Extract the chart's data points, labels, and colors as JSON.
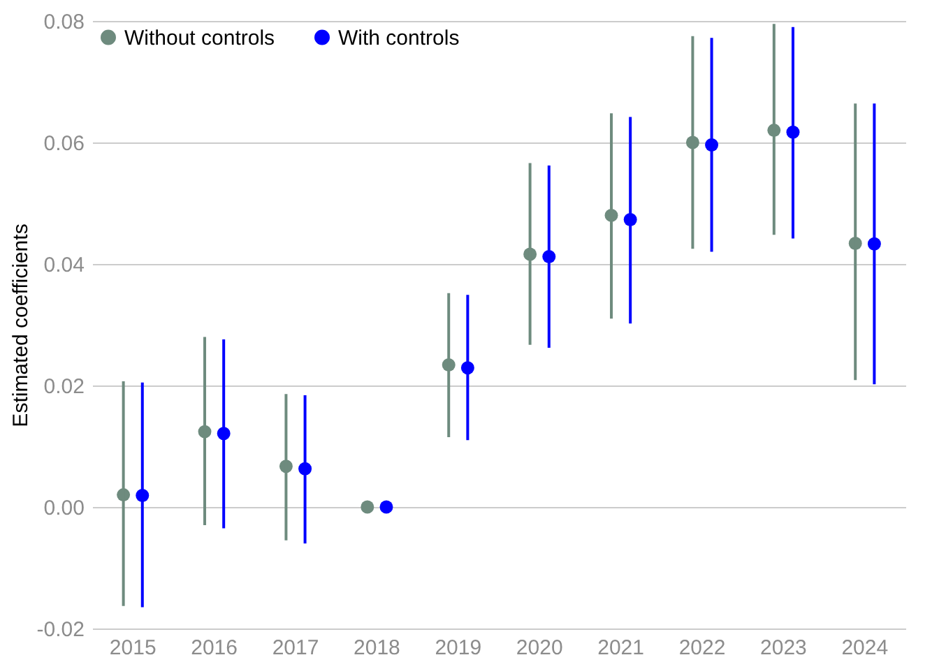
{
  "chart_data": {
    "type": "scatter",
    "ylabel": "Estimated coefficients",
    "categories": [
      "2015",
      "2016",
      "2017",
      "2018",
      "2019",
      "2020",
      "2021",
      "2022",
      "2023",
      "2024"
    ],
    "series": [
      {
        "name": "Without controls",
        "color": "#6e8b7e",
        "values": [
          0.002,
          0.0124,
          0.0067,
          0,
          0.0234,
          0.0416,
          0.048,
          0.06,
          0.062,
          0.0434
        ],
        "errors": [
          [
            -0.0163,
            0.0207
          ],
          [
            -0.003,
            0.028
          ],
          [
            -0.0055,
            0.0186
          ],
          null,
          [
            0.0115,
            0.0352
          ],
          [
            0.0267,
            0.0566
          ],
          [
            0.031,
            0.0648
          ],
          [
            0.0425,
            0.0775
          ],
          [
            0.0448,
            0.0795
          ],
          [
            0.0209,
            0.0664
          ]
        ]
      },
      {
        "name": "With controls",
        "color": "#0000ff",
        "values": [
          0.0019,
          0.0121,
          0.0063,
          0,
          0.0229,
          0.0412,
          0.0473,
          0.0596,
          0.0617,
          0.0433
        ],
        "errors": [
          [
            -0.0165,
            0.0205
          ],
          [
            -0.0035,
            0.0276
          ],
          [
            -0.006,
            0.0184
          ],
          null,
          [
            0.011,
            0.0349
          ],
          [
            0.0262,
            0.0562
          ],
          [
            0.0302,
            0.0642
          ],
          [
            0.042,
            0.0772
          ],
          [
            0.0442,
            0.079
          ],
          [
            0.0202,
            0.0664
          ]
        ]
      }
    ],
    "ylim": [
      -0.02,
      0.08
    ],
    "yticks": [
      {
        "value": -0.02,
        "label": "-0.02"
      },
      {
        "value": 0,
        "label": "0.00"
      },
      {
        "value": 0.02,
        "label": "0.02"
      },
      {
        "value": 0.04,
        "label": "0.04"
      },
      {
        "value": 0.06,
        "label": "0.06"
      },
      {
        "value": 0.08,
        "label": "0.08"
      }
    ],
    "grid": "y",
    "legend": "top left",
    "marker": "circle"
  }
}
